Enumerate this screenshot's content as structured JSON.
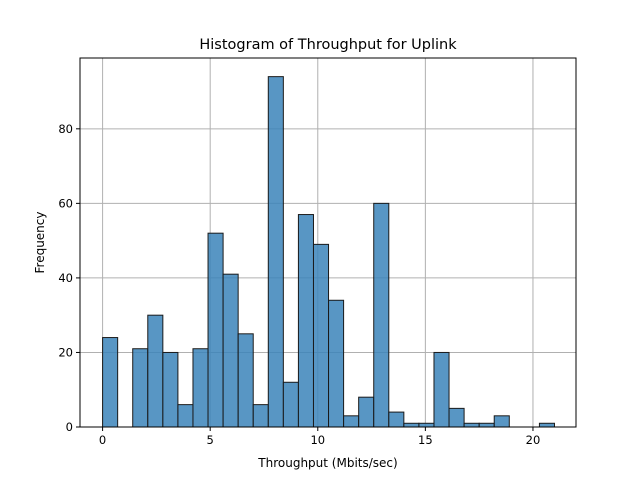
{
  "chart_data": {
    "type": "bar",
    "title": "Histogram of Throughput for Uplink",
    "xlabel": "Throughput (Mbits/sec)",
    "ylabel": "Frequency",
    "xlim": [
      -1.05,
      22
    ],
    "ylim": [
      0,
      99
    ],
    "xticks": [
      0,
      5,
      10,
      15,
      20
    ],
    "yticks": [
      0,
      20,
      40,
      60,
      80
    ],
    "grid": true,
    "bins": [
      {
        "x0": 0.0,
        "x1": 0.7,
        "count": 24
      },
      {
        "x0": 0.7,
        "x1": 1.4,
        "count": 0
      },
      {
        "x0": 1.4,
        "x1": 2.1,
        "count": 21
      },
      {
        "x0": 2.1,
        "x1": 2.8,
        "count": 30
      },
      {
        "x0": 2.8,
        "x1": 3.5,
        "count": 20
      },
      {
        "x0": 3.5,
        "x1": 4.2,
        "count": 6
      },
      {
        "x0": 4.2,
        "x1": 4.9,
        "count": 21
      },
      {
        "x0": 4.9,
        "x1": 5.6,
        "count": 52
      },
      {
        "x0": 5.6,
        "x1": 6.3,
        "count": 41
      },
      {
        "x0": 6.3,
        "x1": 7.0,
        "count": 25
      },
      {
        "x0": 7.0,
        "x1": 7.7,
        "count": 6
      },
      {
        "x0": 7.7,
        "x1": 8.4,
        "count": 94
      },
      {
        "x0": 8.4,
        "x1": 9.1,
        "count": 12
      },
      {
        "x0": 9.1,
        "x1": 9.8,
        "count": 57
      },
      {
        "x0": 9.8,
        "x1": 10.5,
        "count": 49
      },
      {
        "x0": 10.5,
        "x1": 11.2,
        "count": 34
      },
      {
        "x0": 11.2,
        "x1": 11.9,
        "count": 3
      },
      {
        "x0": 11.9,
        "x1": 12.6,
        "count": 8
      },
      {
        "x0": 12.6,
        "x1": 13.3,
        "count": 60
      },
      {
        "x0": 13.3,
        "x1": 14.0,
        "count": 4
      },
      {
        "x0": 14.0,
        "x1": 14.7,
        "count": 1
      },
      {
        "x0": 14.7,
        "x1": 15.4,
        "count": 1
      },
      {
        "x0": 15.4,
        "x1": 16.1,
        "count": 20
      },
      {
        "x0": 16.1,
        "x1": 16.8,
        "count": 5
      },
      {
        "x0": 16.8,
        "x1": 17.5,
        "count": 1
      },
      {
        "x0": 17.5,
        "x1": 18.2,
        "count": 1
      },
      {
        "x0": 18.2,
        "x1": 18.9,
        "count": 3
      },
      {
        "x0": 18.9,
        "x1": 19.6,
        "count": 0
      },
      {
        "x0": 19.6,
        "x1": 20.3,
        "count": 0
      },
      {
        "x0": 20.3,
        "x1": 21.0,
        "count": 1
      }
    ],
    "colors": {
      "bar": "#3b84ba",
      "edge": "#1a1a1a",
      "grid": "#b0b0b0"
    }
  }
}
